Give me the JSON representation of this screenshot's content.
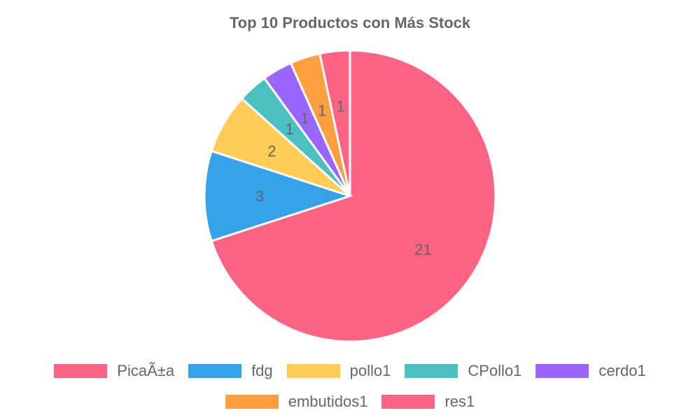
{
  "chart_data": {
    "type": "pie",
    "title": "Top 10 Productos con Más Stock",
    "categories": [
      "PicaÃ±a",
      "fdg",
      "pollo1",
      "CPollo1",
      "cerdo1",
      "embutidos1",
      "res1"
    ],
    "values": [
      21,
      3,
      2,
      1,
      1,
      1,
      1
    ],
    "colors": [
      "#ff6384",
      "#36a2eb",
      "#ffcd56",
      "#4bc0c0",
      "#9966ff",
      "#ff9f40",
      "#ff6384"
    ],
    "legend_position": "bottom"
  }
}
